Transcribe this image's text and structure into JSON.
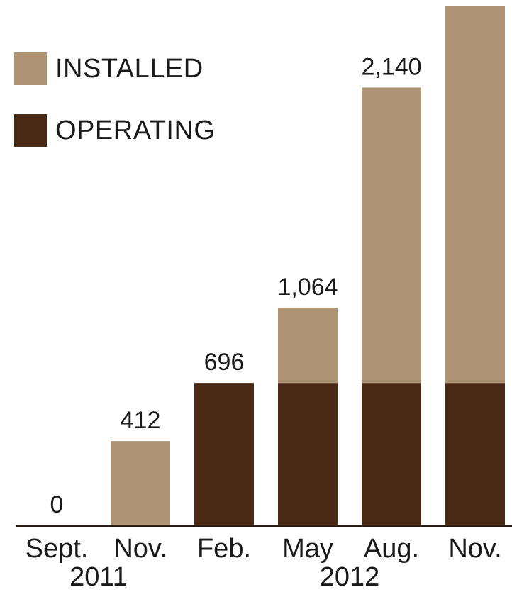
{
  "chart_data": {
    "type": "bar",
    "stacked": true,
    "categories": [
      "Sept.",
      "Nov.",
      "Feb.",
      "May",
      "Aug.",
      "Nov."
    ],
    "year_labels": [
      {
        "label": "2011",
        "category_index": 0.5
      },
      {
        "label": "2012",
        "category_index": 3.5
      }
    ],
    "series": [
      {
        "name": "OPERATING",
        "color": "#4a2a14",
        "values": [
          0,
          0,
          696,
          696,
          696,
          696
        ]
      },
      {
        "name": "INSTALLED",
        "color": "#ae9474",
        "values": [
          0,
          412,
          0,
          368,
          1444,
          1844
        ]
      }
    ],
    "total_labels": [
      "0",
      "412",
      "696",
      "1,064",
      "2,140",
      ""
    ],
    "ylim": [
      0,
      2540
    ],
    "legend_position": "top-left",
    "grid": false
  }
}
